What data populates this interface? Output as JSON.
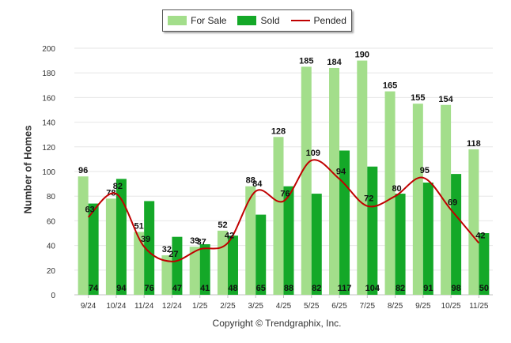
{
  "chart_data": {
    "type": "bar",
    "title": "",
    "xlabel": "",
    "ylabel": "Number of Homes",
    "ylim": [
      0,
      200
    ],
    "yticks": [
      0,
      20,
      40,
      60,
      80,
      100,
      120,
      140,
      160,
      180,
      200
    ],
    "grid": true,
    "legend_position": "top-center",
    "categories": [
      "9/24",
      "10/24",
      "11/24",
      "12/24",
      "1/25",
      "2/25",
      "3/25",
      "4/25",
      "5/25",
      "6/25",
      "7/25",
      "8/25",
      "9/25",
      "10/25",
      "11/25"
    ],
    "series": [
      {
        "name": "For Sale",
        "kind": "bar",
        "color": "#a3de8b",
        "values": [
          96,
          78,
          51,
          32,
          39,
          52,
          88,
          128,
          185,
          184,
          190,
          165,
          155,
          154,
          118
        ]
      },
      {
        "name": "Sold",
        "kind": "bar",
        "color": "#14a828",
        "values": [
          74,
          94,
          76,
          47,
          41,
          48,
          65,
          88,
          82,
          117,
          104,
          82,
          91,
          98,
          50
        ]
      },
      {
        "name": "Pended",
        "kind": "line",
        "color": "#c00000",
        "values": [
          63,
          82,
          39,
          27,
          37,
          42,
          84,
          76,
          109,
          94,
          72,
          80,
          95,
          69,
          42
        ]
      }
    ]
  },
  "legend": {
    "for_sale": "For Sale",
    "sold": "Sold",
    "pended": "Pended"
  },
  "footer": {
    "copyright": "Copyright © Trendgraphix, Inc."
  }
}
